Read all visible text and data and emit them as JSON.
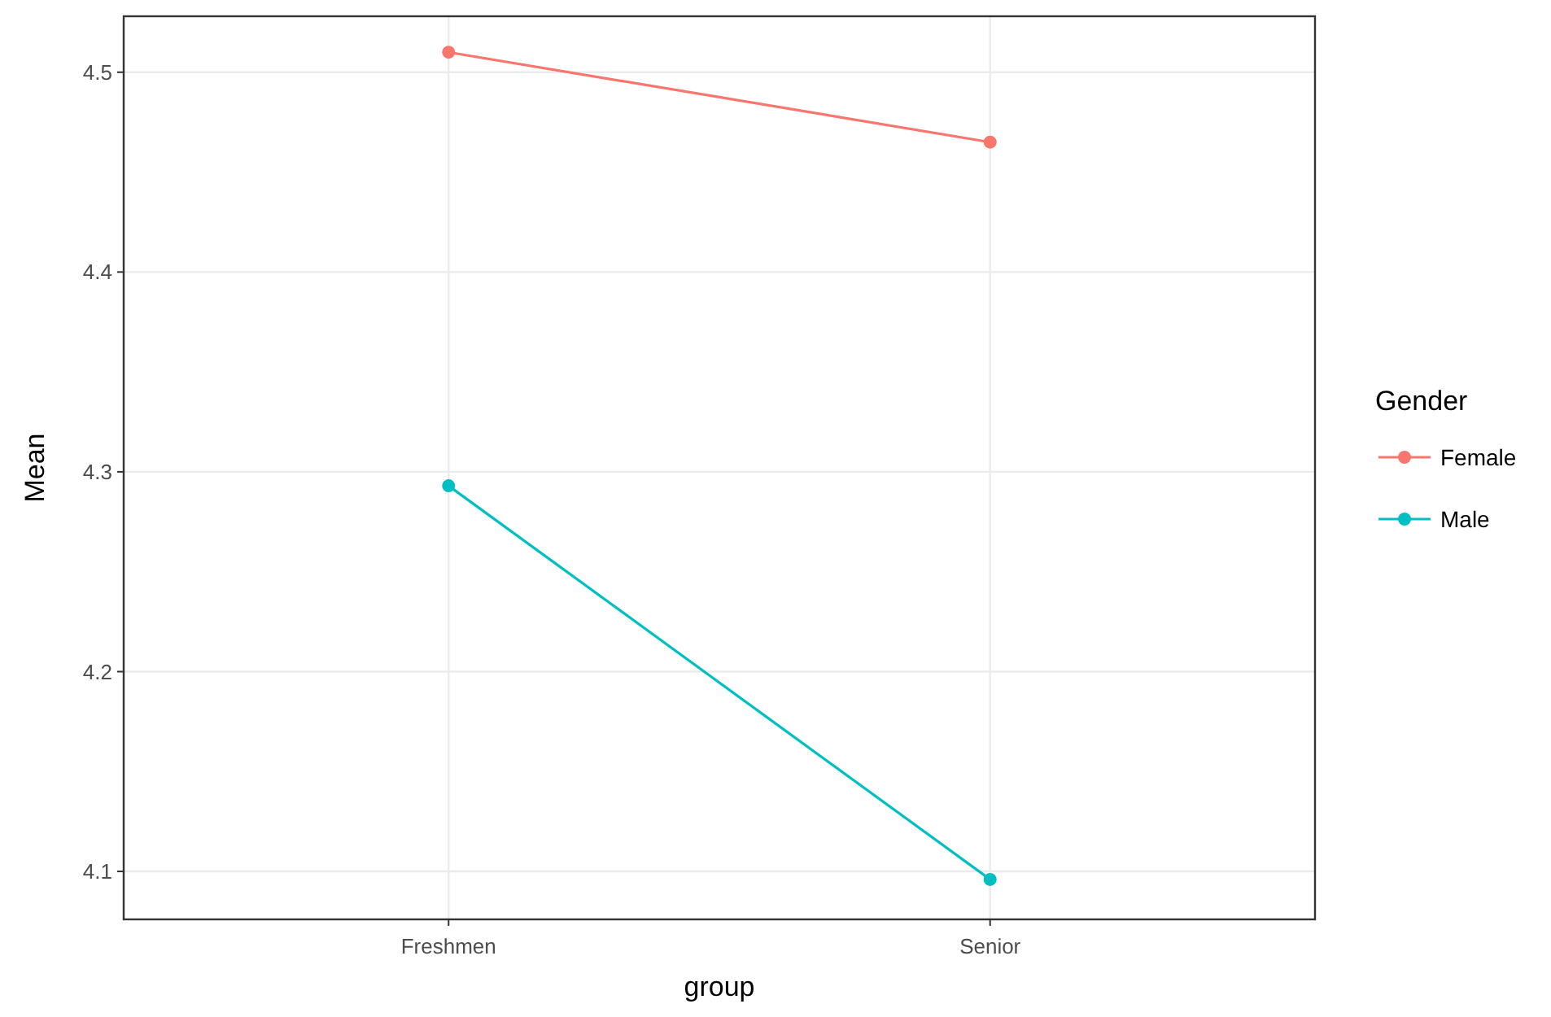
{
  "chart_data": {
    "type": "line",
    "xlabel": "group",
    "ylabel": "Mean",
    "legend_title": "Gender",
    "categories": [
      "Freshmen",
      "Senior"
    ],
    "series": [
      {
        "name": "Female",
        "color": "#f8766d",
        "values": [
          4.51,
          4.465
        ]
      },
      {
        "name": "Male",
        "color": "#00bfc4",
        "values": [
          4.293,
          4.096
        ]
      }
    ],
    "ylim": [
      4.076,
      4.528
    ],
    "yticks": [
      4.1,
      4.2,
      4.3,
      4.4,
      4.5
    ],
    "grid": true,
    "legend": "right",
    "marker": "circle",
    "line_style": "solid"
  }
}
